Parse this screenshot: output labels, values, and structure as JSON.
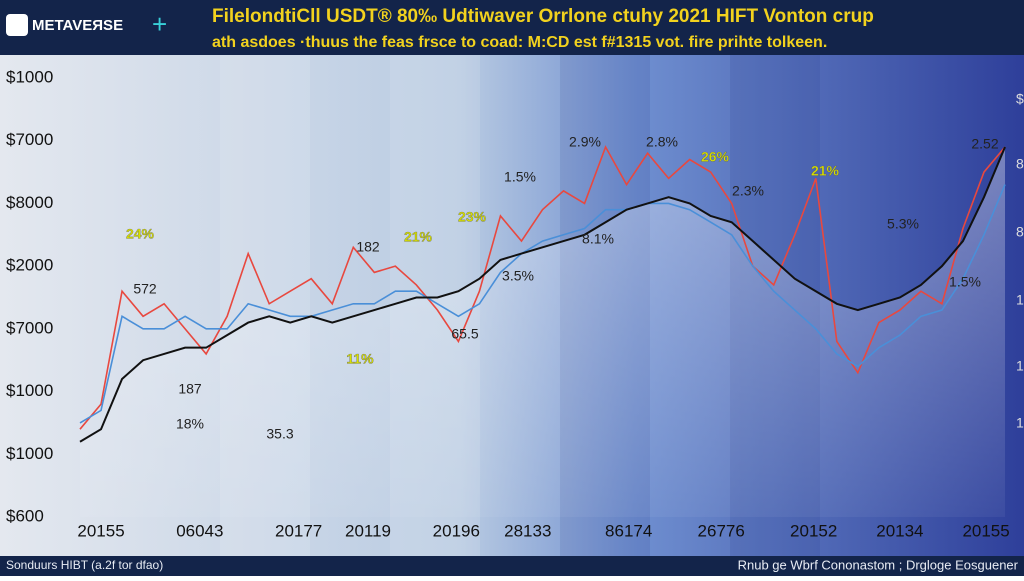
{
  "header": {
    "logo": "METAVEЯSE",
    "title": "FilelondtiCll USDT® 80‰ Udtiwaver Orrlone ctuhy 2021 HIFT Vonton crup",
    "subtitle": "ath asdoes ·thuus the feas frsce to coad: M:CD est f#1315 vot. fire prihte tolkeen."
  },
  "footer": {
    "left": "Sonduurs HIBT (a.2f tor dfao)",
    "right": "Rnub ge Wbrf Cononastom ; Drgloge Eosguener"
  },
  "chart_data": {
    "type": "line",
    "x": [
      0,
      1,
      2,
      3,
      4,
      5,
      6,
      7,
      8,
      9,
      10,
      11,
      12,
      13,
      14,
      15,
      16,
      17,
      18,
      19,
      20,
      21,
      22,
      23,
      24,
      25,
      26,
      27,
      28,
      29,
      30,
      31,
      32,
      33,
      34,
      35,
      36,
      37,
      38,
      39,
      40,
      41,
      42,
      43,
      44
    ],
    "xlim": [
      0,
      44
    ],
    "xticks": [
      {
        "value": 1,
        "label": "20155"
      },
      {
        "value": 5.7,
        "label": "06043"
      },
      {
        "value": 10.4,
        "label": "20177"
      },
      {
        "value": 13.7,
        "label": "20119"
      },
      {
        "value": 17.9,
        "label": "20196"
      },
      {
        "value": 21.3,
        "label": "28133"
      },
      {
        "value": 26.1,
        "label": "86174"
      },
      {
        "value": 30.5,
        "label": "26776"
      },
      {
        "value": 34.9,
        "label": "20152"
      },
      {
        "value": 39,
        "label": "20134"
      },
      {
        "value": 43.1,
        "label": "20155"
      }
    ],
    "ylim": [
      0,
      7
    ],
    "yticks": [
      {
        "value": 7,
        "label": "$1000"
      },
      {
        "value": 6,
        "label": "$7000"
      },
      {
        "value": 5,
        "label": "$8000"
      },
      {
        "value": 4,
        "label": "$2000"
      },
      {
        "value": 3,
        "label": "$7000"
      },
      {
        "value": 2,
        "label": "$1000"
      },
      {
        "value": 1,
        "label": "$1000"
      },
      {
        "value": 0,
        "label": "$600"
      }
    ],
    "right_labels": [
      "$",
      "8",
      "8",
      "1",
      "1",
      "1"
    ],
    "series": [
      {
        "color": "#e8483f",
        "values": [
          1.4,
          1.8,
          3.6,
          3.2,
          3.4,
          3.0,
          2.6,
          3.2,
          4.2,
          3.4,
          3.6,
          3.8,
          3.4,
          4.3,
          3.9,
          4.0,
          3.7,
          3.3,
          2.8,
          3.6,
          4.8,
          4.4,
          4.9,
          5.2,
          5.0,
          5.9,
          5.3,
          5.8,
          5.4,
          5.7,
          5.5,
          5.0,
          4.0,
          3.7,
          4.5,
          5.4,
          2.8,
          2.3,
          3.1,
          3.3,
          3.6,
          3.4,
          4.6,
          5.5,
          5.9
        ]
      },
      {
        "color": "#4a8fd8",
        "values": [
          1.5,
          1.7,
          3.2,
          3.0,
          3.0,
          3.2,
          3.0,
          3.0,
          3.4,
          3.3,
          3.2,
          3.2,
          3.3,
          3.4,
          3.4,
          3.6,
          3.6,
          3.4,
          3.2,
          3.4,
          3.9,
          4.2,
          4.4,
          4.5,
          4.6,
          4.9,
          4.9,
          5.0,
          5.0,
          4.9,
          4.7,
          4.5,
          4.0,
          3.6,
          3.3,
          3.0,
          2.6,
          2.4,
          2.7,
          2.9,
          3.2,
          3.3,
          3.8,
          4.5,
          5.3
        ]
      },
      {
        "color": "#111111",
        "values": [
          1.2,
          1.4,
          2.2,
          2.5,
          2.6,
          2.7,
          2.7,
          2.9,
          3.1,
          3.2,
          3.1,
          3.2,
          3.1,
          3.2,
          3.3,
          3.4,
          3.5,
          3.5,
          3.6,
          3.8,
          4.1,
          4.2,
          4.3,
          4.4,
          4.5,
          4.7,
          4.9,
          5.0,
          5.1,
          5.0,
          4.8,
          4.7,
          4.4,
          4.1,
          3.8,
          3.6,
          3.4,
          3.3,
          3.4,
          3.5,
          3.7,
          4.0,
          4.4,
          5.1,
          5.9
        ]
      }
    ],
    "annotations": [
      "24%",
      "572",
      "187",
      "18%",
      "35.3",
      "182",
      "21%",
      "11%",
      "23%",
      "65.5",
      "1.5%",
      "2.9%",
      "2.8%",
      "26%",
      "2.3%",
      "21%",
      "5.3%",
      "1.5%",
      "2.52",
      "8.1%",
      "3.5%"
    ]
  }
}
